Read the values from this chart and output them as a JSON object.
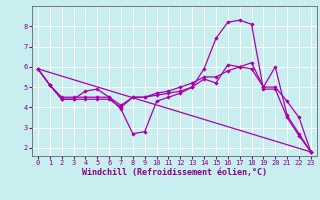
{
  "xlabel": "Windchill (Refroidissement éolien,°C)",
  "bg_color": "#c8eef0",
  "line_color": "#aa00aa",
  "grid_color": "#aadddd",
  "xlim": [
    -0.5,
    23.5
  ],
  "ylim": [
    1.6,
    9.0
  ],
  "xtick_vals": [
    0,
    1,
    2,
    3,
    4,
    5,
    6,
    7,
    8,
    9,
    10,
    11,
    12,
    13,
    14,
    15,
    16,
    17,
    18,
    19,
    20,
    21,
    22,
    23
  ],
  "ytick_vals": [
    2,
    3,
    4,
    5,
    6,
    7,
    8
  ],
  "line1_x": [
    0,
    1,
    2,
    3,
    4,
    5,
    6,
    7,
    8,
    9,
    10,
    11,
    12,
    13,
    14,
    15,
    16,
    17,
    18,
    19,
    20,
    21,
    22,
    23
  ],
  "line1_y": [
    5.9,
    5.1,
    4.4,
    4.4,
    4.8,
    4.9,
    4.5,
    3.9,
    2.7,
    2.8,
    4.3,
    4.5,
    4.7,
    5.0,
    5.9,
    7.4,
    8.2,
    8.3,
    8.1,
    4.9,
    4.9,
    3.5,
    2.6,
    1.8
  ],
  "line2_x": [
    0,
    1,
    2,
    3,
    4,
    5,
    6,
    7,
    8,
    9,
    10,
    11,
    12,
    13,
    14,
    15,
    16,
    17,
    18,
    19,
    20,
    21,
    22,
    23
  ],
  "line2_y": [
    5.9,
    5.1,
    4.4,
    4.4,
    4.4,
    4.4,
    4.4,
    4.0,
    4.5,
    4.5,
    4.7,
    4.8,
    5.0,
    5.2,
    5.5,
    5.5,
    5.8,
    6.0,
    6.2,
    5.0,
    5.0,
    4.3,
    3.5,
    1.8
  ],
  "line3_x": [
    0,
    1,
    2,
    3,
    4,
    5,
    6,
    7,
    8,
    9,
    10,
    11,
    12,
    13,
    14,
    15,
    16,
    17,
    18,
    19,
    20,
    21,
    22,
    23
  ],
  "line3_y": [
    5.9,
    5.1,
    4.5,
    4.5,
    4.5,
    4.5,
    4.5,
    4.1,
    4.5,
    4.5,
    4.6,
    4.7,
    4.8,
    5.0,
    5.4,
    5.2,
    6.1,
    6.0,
    5.9,
    5.0,
    6.0,
    3.6,
    2.7,
    1.8
  ],
  "line4_x": [
    0,
    23
  ],
  "line4_y": [
    5.9,
    1.8
  ],
  "xlabel_color": "#880088",
  "xlabel_fontsize": 6.0,
  "tick_fontsize": 5.0,
  "linewidth": 0.9,
  "markersize": 2.2
}
